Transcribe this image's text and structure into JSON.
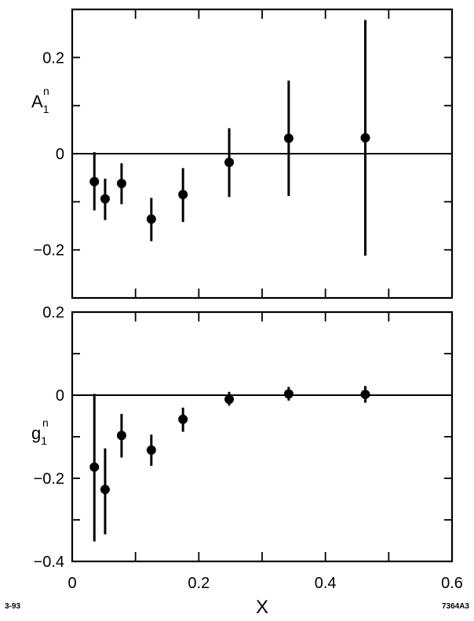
{
  "chart_data": [
    {
      "type": "scatter",
      "panel": "top",
      "ylabel": {
        "main": "A",
        "sup": "n",
        "sub": "1"
      },
      "xlim": [
        0,
        0.6
      ],
      "ylim": [
        -0.3,
        0.3
      ],
      "yticks": [
        -0.2,
        0,
        0.2
      ],
      "ytick_labels": [
        "−0.2",
        "0",
        "0.2"
      ],
      "zero_line": true,
      "series": [
        {
          "x": [
            0.035,
            0.052,
            0.078,
            0.125,
            0.175,
            0.248,
            0.342,
            0.463
          ],
          "y": [
            -0.058,
            -0.094,
            -0.062,
            -0.136,
            -0.085,
            -0.018,
            0.032,
            0.033
          ],
          "ylow": [
            -0.118,
            -0.138,
            -0.105,
            -0.182,
            -0.142,
            -0.09,
            -0.088,
            -0.212
          ],
          "yhigh": [
            0.003,
            -0.052,
            -0.02,
            -0.092,
            -0.03,
            0.053,
            0.152,
            0.278
          ]
        }
      ]
    },
    {
      "type": "scatter",
      "panel": "bottom",
      "ylabel": {
        "main": "g",
        "sup": "n",
        "sub": "1"
      },
      "xlabel": "X",
      "xlim": [
        0,
        0.6
      ],
      "ylim": [
        -0.4,
        0.2
      ],
      "yticks": [
        -0.4,
        -0.2,
        0,
        0.2
      ],
      "ytick_labels": [
        "−0.4",
        "−0.2",
        "0",
        "0.2"
      ],
      "xticks": [
        0,
        0.2,
        0.4,
        0.6
      ],
      "xtick_labels": [
        "0",
        "0.2",
        "0.4",
        "0.6"
      ],
      "zero_line": true,
      "series": [
        {
          "x": [
            0.035,
            0.052,
            0.078,
            0.125,
            0.175,
            0.248,
            0.342,
            0.463
          ],
          "y": [
            -0.173,
            -0.227,
            -0.097,
            -0.132,
            -0.058,
            -0.01,
            0.003,
            0.002
          ],
          "ylow": [
            -0.352,
            -0.335,
            -0.15,
            -0.17,
            -0.088,
            -0.025,
            -0.013,
            -0.018
          ],
          "yhigh": [
            0.003,
            -0.128,
            -0.045,
            -0.095,
            -0.03,
            0.008,
            0.02,
            0.022
          ]
        }
      ]
    }
  ],
  "annotations": {
    "bottom_left": "3-93",
    "bottom_right": "7364A3"
  }
}
